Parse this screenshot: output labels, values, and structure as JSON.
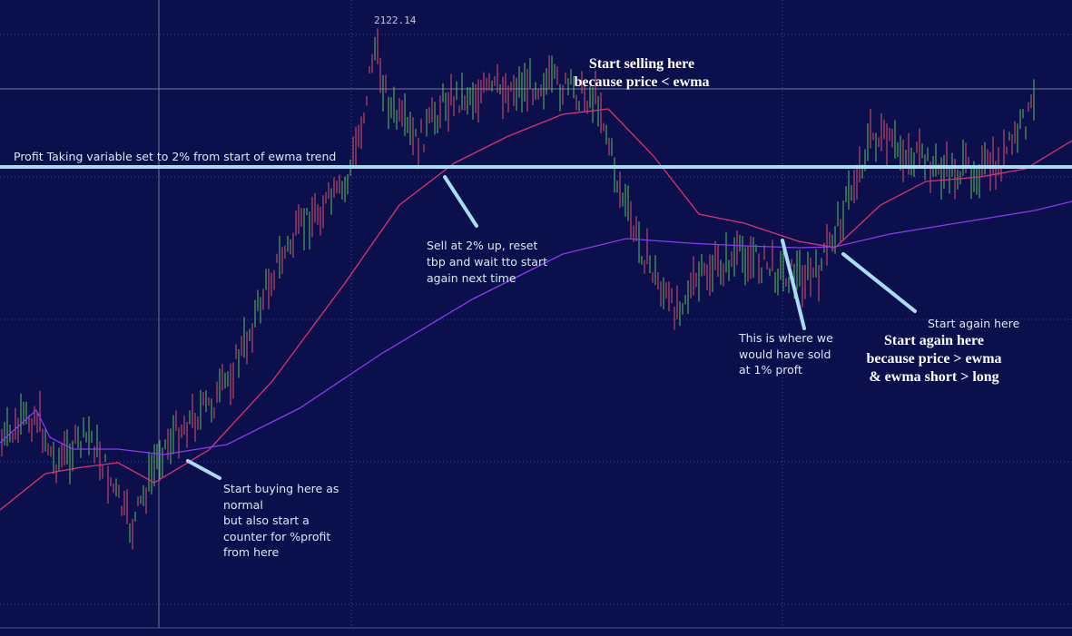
{
  "price_label": "2122.14",
  "annotations": {
    "profit_line": "Profit Taking variable set to 2% from start of ewma trend",
    "start_selling": [
      "Start selling here",
      "because price < ewma"
    ],
    "sell_note": [
      "Sell at 2% up, reset",
      "tbp and wait tto start",
      "again next time"
    ],
    "buy_note": [
      "Start buying here as",
      "normal",
      "but also start a",
      "counter for %profit",
      "from here"
    ],
    "sold_note": [
      "This is where we",
      "would have sold",
      "at 1% proft"
    ],
    "start_again_small": "Start again here",
    "start_again": [
      "Start again here",
      "because price > ewma",
      "& ewma short > long"
    ]
  }
}
